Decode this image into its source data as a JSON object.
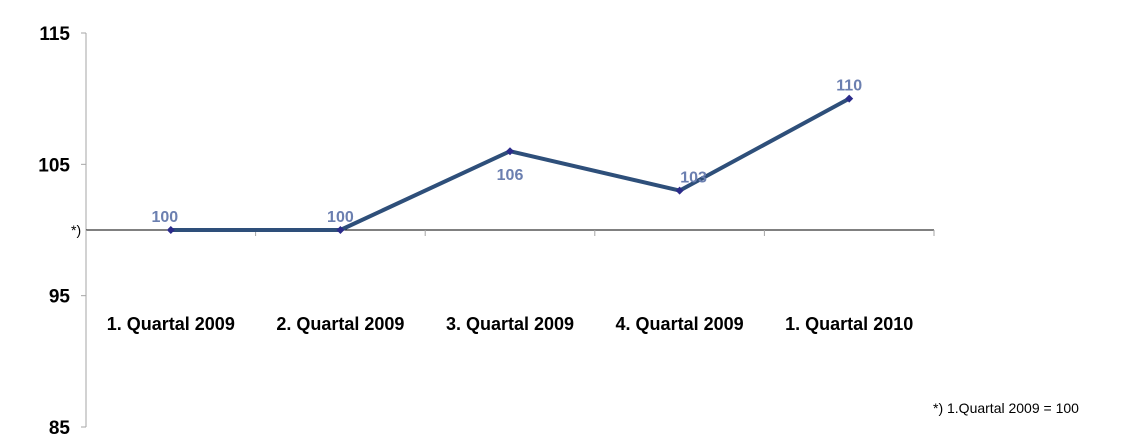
{
  "chart_data": {
    "type": "line",
    "categories": [
      "1. Quartal 2009",
      "2. Quartal 2009",
      "3. Quartal 2009",
      "4. Quartal 2009",
      "1. Quartal 2010"
    ],
    "series": [
      {
        "values": [
          100,
          100,
          106,
          103,
          110
        ]
      }
    ],
    "data_labels": [
      "100",
      "100",
      "106",
      "103",
      "110"
    ],
    "y_ticks": [
      "115",
      "105",
      "95",
      "85"
    ],
    "ylim": [
      85,
      115
    ],
    "baseline_value": 100,
    "baseline_marker": "*)",
    "footnote": "*) 1.Quartal 2009 = 100",
    "grid": false,
    "legend": "none",
    "colors": {
      "line": "#2e4f7a",
      "marker": "#2b2b8a",
      "data_label": "#6b7fb0",
      "axis": "#a6a6a6"
    }
  }
}
